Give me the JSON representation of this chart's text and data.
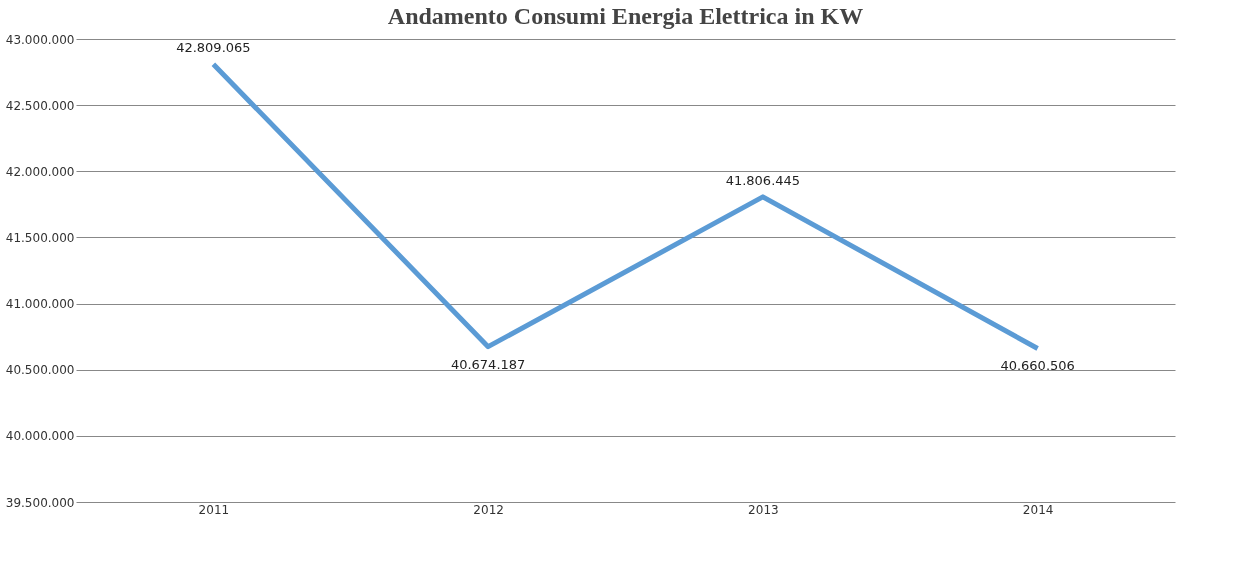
{
  "chart_data": {
    "type": "line",
    "title": "Andamento Consumi Energia Elettrica in KW",
    "categories": [
      "2011",
      "2012",
      "2013",
      "2014"
    ],
    "series": [
      {
        "color": "#5b9bd5",
        "values": [
          42809065,
          40674187,
          41806445,
          40660506
        ],
        "value_labels": [
          "42.809.065",
          "40.674.187",
          "41.806.445",
          "40.660.506"
        ]
      }
    ],
    "ylim": [
      39500000,
      43000000
    ],
    "yticks": [
      {
        "value": 39500000,
        "label": "39.500.000"
      },
      {
        "value": 40000000,
        "label": "40.000.000"
      },
      {
        "value": 40500000,
        "label": "40.500.000"
      },
      {
        "value": 41000000,
        "label": "41.000.000"
      },
      {
        "value": 41500000,
        "label": "41.500.000"
      },
      {
        "value": 42000000,
        "label": "42.000.000"
      },
      {
        "value": 42500000,
        "label": "42.500.000"
      },
      {
        "value": 43000000,
        "label": "43.000.000"
      }
    ],
    "grid": "y",
    "marker": "none",
    "line_style": "solid"
  }
}
